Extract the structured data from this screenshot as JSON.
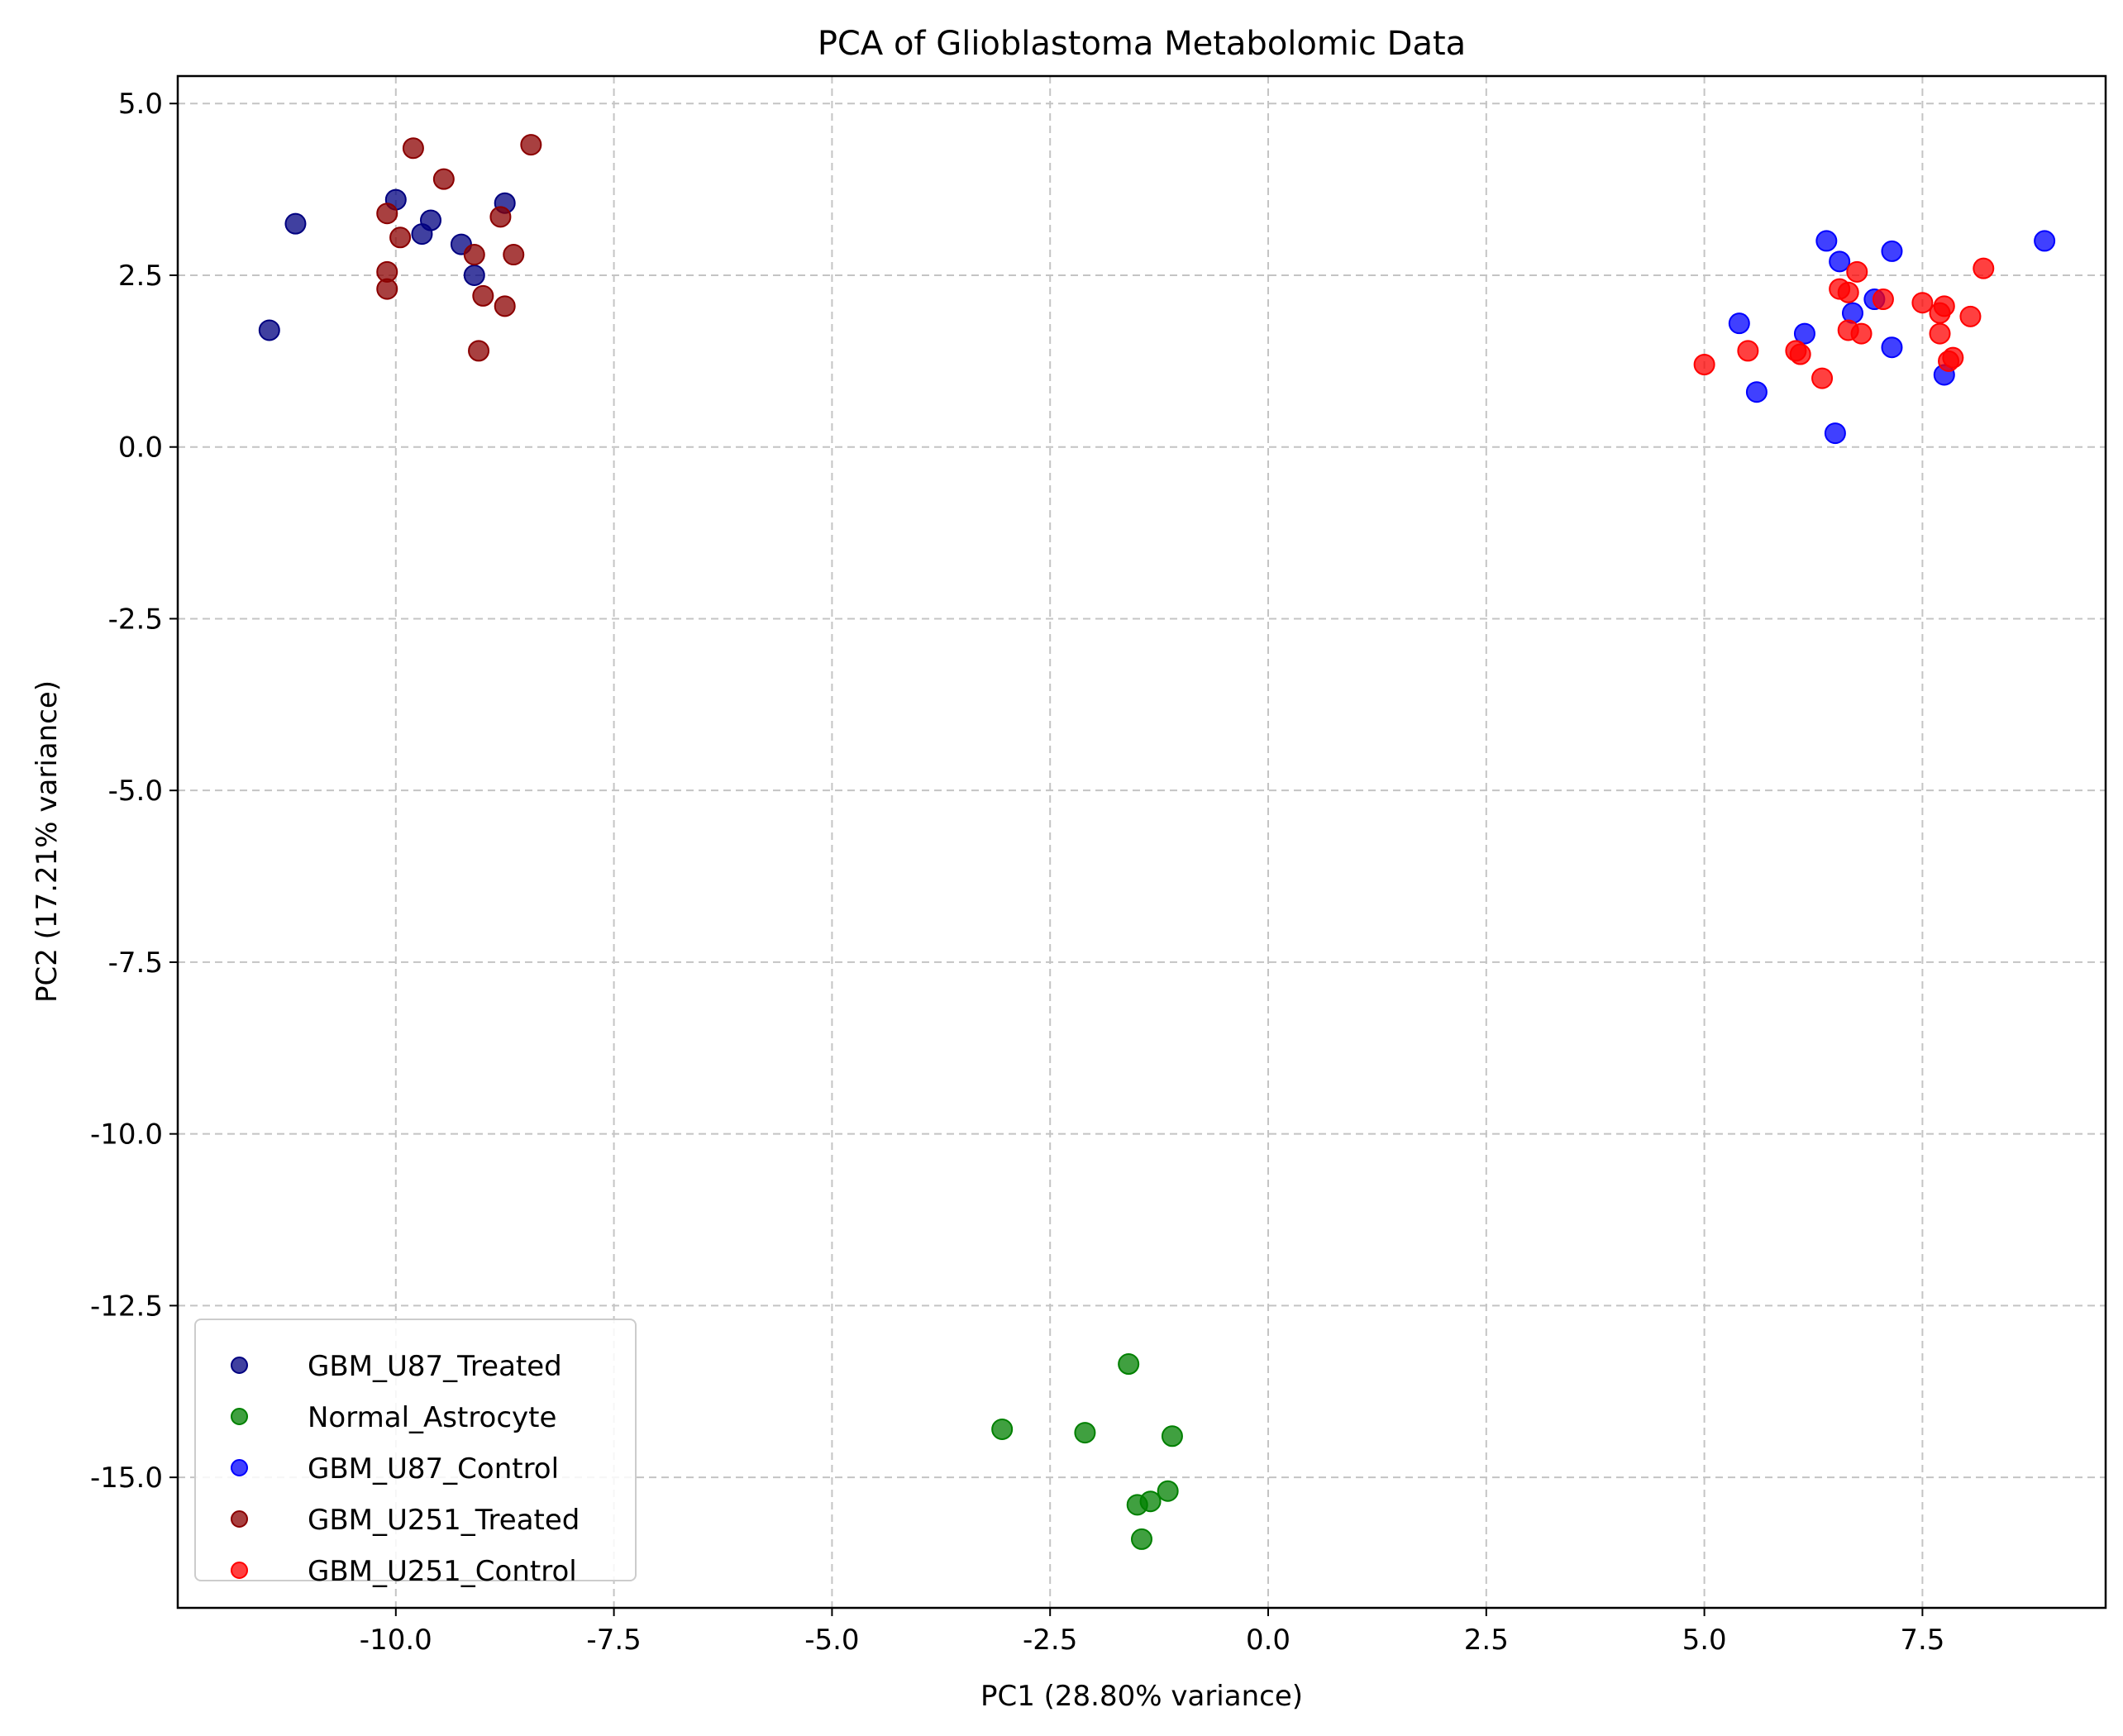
{
  "chart_data": {
    "type": "scatter",
    "title": "PCA of Glioblastoma Metabolomic Data",
    "xlabel": "PC1 (28.80% variance)",
    "ylabel": "PC2 (17.21% variance)",
    "xlim": [
      -12.5,
      9.6
    ],
    "ylim": [
      -16.9,
      5.4
    ],
    "xticks": [
      -10.0,
      -7.5,
      -5.0,
      -2.5,
      0.0,
      2.5,
      5.0,
      7.5
    ],
    "yticks": [
      5.0,
      2.5,
      0.0,
      -2.5,
      -5.0,
      -7.5,
      -10.0,
      -12.5,
      -15.0
    ],
    "xtick_labels": [
      "-10.0",
      "-7.5",
      "-5.0",
      "-2.5",
      "0.0",
      "2.5",
      "5.0",
      "7.5"
    ],
    "ytick_labels": [
      "5.0",
      "2.5",
      "0.0",
      "-2.5",
      "-5.0",
      "-7.5",
      "-10.0",
      "-12.5",
      "-15.0"
    ],
    "grid": true,
    "legend_position": "lower-left",
    "series": [
      {
        "name": "GBM_U87_Treated",
        "color": "#000080",
        "points": [
          [
            -11.15,
            3.25
          ],
          [
            -11.45,
            1.7
          ],
          [
            -10.0,
            3.6
          ],
          [
            -9.7,
            3.1
          ],
          [
            -9.6,
            3.3
          ],
          [
            -9.25,
            2.95
          ],
          [
            -9.1,
            2.5
          ],
          [
            -8.75,
            3.55
          ]
        ]
      },
      {
        "name": "Normal_Astrocyte",
        "color": "#008000",
        "points": [
          [
            -1.6,
            -13.35
          ],
          [
            -3.05,
            -14.3
          ],
          [
            -2.1,
            -14.35
          ],
          [
            -1.1,
            -14.4
          ],
          [
            -1.15,
            -15.2
          ],
          [
            -1.35,
            -15.35
          ],
          [
            -1.5,
            -15.4
          ],
          [
            -1.45,
            -15.9
          ]
        ]
      },
      {
        "name": "GBM_U87_Control",
        "color": "#0000ff",
        "points": [
          [
            6.4,
            3.0
          ],
          [
            7.15,
            2.85
          ],
          [
            8.9,
            3.0
          ],
          [
            6.55,
            2.7
          ],
          [
            6.95,
            2.15
          ],
          [
            6.7,
            1.95
          ],
          [
            5.4,
            1.8
          ],
          [
            6.15,
            1.65
          ],
          [
            7.15,
            1.45
          ],
          [
            7.75,
            1.05
          ],
          [
            5.6,
            0.8
          ],
          [
            6.5,
            0.2
          ]
        ]
      },
      {
        "name": "GBM_U251_Treated",
        "color": "#8b0000",
        "points": [
          [
            -9.8,
            4.35
          ],
          [
            -8.45,
            4.4
          ],
          [
            -9.45,
            3.9
          ],
          [
            -10.1,
            3.4
          ],
          [
            -8.8,
            3.35
          ],
          [
            -9.95,
            3.05
          ],
          [
            -9.1,
            2.8
          ],
          [
            -8.65,
            2.8
          ],
          [
            -10.1,
            2.55
          ],
          [
            -10.1,
            2.3
          ],
          [
            -9.0,
            2.2
          ],
          [
            -8.75,
            2.05
          ],
          [
            -9.05,
            1.4
          ]
        ]
      },
      {
        "name": "GBM_U251_Control",
        "color": "#ff0000",
        "points": [
          [
            8.2,
            2.6
          ],
          [
            6.75,
            2.55
          ],
          [
            6.55,
            2.3
          ],
          [
            6.65,
            2.25
          ],
          [
            7.05,
            2.15
          ],
          [
            7.5,
            2.1
          ],
          [
            7.75,
            2.05
          ],
          [
            7.7,
            1.95
          ],
          [
            8.05,
            1.9
          ],
          [
            6.65,
            1.7
          ],
          [
            6.8,
            1.65
          ],
          [
            7.7,
            1.65
          ],
          [
            6.05,
            1.4
          ],
          [
            6.1,
            1.35
          ],
          [
            5.5,
            1.4
          ],
          [
            7.85,
            1.3
          ],
          [
            7.8,
            1.25
          ],
          [
            5.0,
            1.2
          ],
          [
            6.35,
            1.0
          ]
        ]
      }
    ]
  }
}
